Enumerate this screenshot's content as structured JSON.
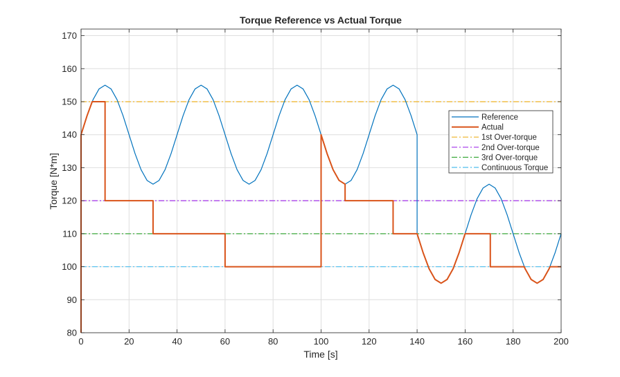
{
  "chart_data": {
    "type": "line",
    "title": "Torque Reference vs Actual Torque",
    "xlabel": "Time [s]",
    "ylabel": "Torque [N*m]",
    "xlim": [
      0,
      200
    ],
    "ylim": [
      80,
      172
    ],
    "xticks": [
      0,
      20,
      40,
      60,
      80,
      100,
      120,
      140,
      160,
      180,
      200
    ],
    "yticks": [
      80,
      90,
      100,
      110,
      120,
      130,
      140,
      150,
      160,
      170
    ],
    "grid": true,
    "legend_position": "right",
    "series": [
      {
        "name": "Reference",
        "color": "#0072BD",
        "style": "solid",
        "points": [
          [
            0,
            140
          ],
          [
            2.5,
            145.74
          ],
          [
            5,
            150.61
          ],
          [
            7.5,
            153.86
          ],
          [
            10,
            155
          ],
          [
            12.5,
            153.86
          ],
          [
            15,
            150.61
          ],
          [
            17.5,
            145.74
          ],
          [
            20,
            140
          ],
          [
            22.5,
            134.26
          ],
          [
            25,
            129.39
          ],
          [
            27.5,
            126.14
          ],
          [
            30,
            125
          ],
          [
            32.5,
            126.14
          ],
          [
            35,
            129.39
          ],
          [
            37.5,
            134.26
          ],
          [
            40,
            140
          ],
          [
            42.5,
            145.74
          ],
          [
            45,
            150.61
          ],
          [
            47.5,
            153.86
          ],
          [
            50,
            155
          ],
          [
            52.5,
            153.86
          ],
          [
            55,
            150.61
          ],
          [
            57.5,
            145.74
          ],
          [
            60,
            140
          ],
          [
            62.5,
            134.26
          ],
          [
            65,
            129.39
          ],
          [
            67.5,
            126.14
          ],
          [
            70,
            125
          ],
          [
            72.5,
            126.14
          ],
          [
            75,
            129.39
          ],
          [
            77.5,
            134.26
          ],
          [
            80,
            140
          ],
          [
            82.5,
            145.74
          ],
          [
            85,
            150.61
          ],
          [
            87.5,
            153.86
          ],
          [
            90,
            155
          ],
          [
            92.5,
            153.86
          ],
          [
            95,
            150.61
          ],
          [
            97.5,
            145.74
          ],
          [
            100,
            140
          ],
          [
            102.5,
            134.26
          ],
          [
            105,
            129.39
          ],
          [
            107.5,
            126.14
          ],
          [
            110,
            125
          ],
          [
            112.5,
            126.14
          ],
          [
            115,
            129.39
          ],
          [
            117.5,
            134.26
          ],
          [
            120,
            140
          ],
          [
            122.5,
            145.74
          ],
          [
            125,
            150.61
          ],
          [
            127.5,
            153.86
          ],
          [
            130,
            155
          ],
          [
            132.5,
            153.86
          ],
          [
            135,
            150.61
          ],
          [
            137.5,
            145.74
          ],
          [
            140,
            140
          ],
          [
            140,
            110
          ],
          [
            142.5,
            104.26
          ],
          [
            145,
            99.39
          ],
          [
            147.5,
            96.14
          ],
          [
            150,
            95
          ],
          [
            152.5,
            96.14
          ],
          [
            155,
            99.39
          ],
          [
            157.5,
            104.26
          ],
          [
            160,
            110
          ],
          [
            162.5,
            115.74
          ],
          [
            165,
            120.61
          ],
          [
            167.5,
            123.86
          ],
          [
            170,
            125
          ],
          [
            172.5,
            123.86
          ],
          [
            175,
            120.61
          ],
          [
            177.5,
            115.74
          ],
          [
            180,
            110
          ],
          [
            182.5,
            104.26
          ],
          [
            185,
            99.39
          ],
          [
            187.5,
            96.14
          ],
          [
            190,
            95
          ],
          [
            192.5,
            96.14
          ],
          [
            195,
            99.39
          ],
          [
            197.5,
            104.26
          ],
          [
            200,
            110
          ]
        ]
      },
      {
        "name": "Actual",
        "color": "#D95319",
        "style": "solid",
        "points": [
          [
            0,
            80
          ],
          [
            0,
            140
          ],
          [
            2.5,
            145.74
          ],
          [
            4.65,
            150
          ],
          [
            10,
            150
          ],
          [
            10,
            120
          ],
          [
            30,
            120
          ],
          [
            30,
            110
          ],
          [
            60,
            110
          ],
          [
            60,
            100
          ],
          [
            100,
            100
          ],
          [
            100,
            140
          ],
          [
            102.5,
            134.26
          ],
          [
            105,
            129.39
          ],
          [
            107.5,
            126.14
          ],
          [
            110,
            125
          ],
          [
            110,
            120
          ],
          [
            130,
            120
          ],
          [
            130,
            110
          ],
          [
            140,
            110
          ],
          [
            142.5,
            104.26
          ],
          [
            145,
            99.39
          ],
          [
            147.5,
            96.14
          ],
          [
            150,
            95
          ],
          [
            152.5,
            96.14
          ],
          [
            155,
            99.39
          ],
          [
            157.5,
            104.26
          ],
          [
            160,
            110
          ],
          [
            170.5,
            110
          ],
          [
            170.5,
            100
          ],
          [
            184.65,
            100
          ],
          [
            185,
            99.39
          ],
          [
            187.5,
            96.14
          ],
          [
            190,
            95
          ],
          [
            192.5,
            96.14
          ],
          [
            195,
            99.39
          ],
          [
            195.35,
            100
          ],
          [
            200,
            100
          ]
        ]
      },
      {
        "name": "1st Over-torque",
        "color": "#EDB120",
        "style": "dashdot",
        "points": [
          [
            0,
            150
          ],
          [
            200,
            150
          ]
        ]
      },
      {
        "name": "2nd Over-torque",
        "color": "#A12EE8",
        "style": "dashdot",
        "points": [
          [
            0,
            120
          ],
          [
            200,
            120
          ]
        ]
      },
      {
        "name": "3rd Over-torque",
        "color": "#3BAA3B",
        "style": "dashdot",
        "points": [
          [
            0,
            110
          ],
          [
            200,
            110
          ]
        ]
      },
      {
        "name": "Continuous Torque",
        "color": "#4DBEEE",
        "style": "dashdot",
        "points": [
          [
            0,
            100
          ],
          [
            200,
            100
          ]
        ]
      }
    ]
  }
}
